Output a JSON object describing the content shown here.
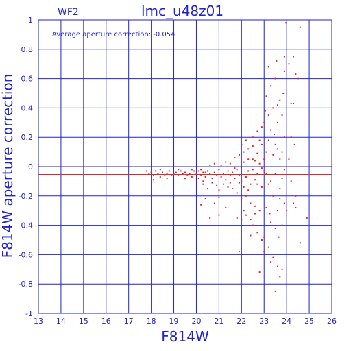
{
  "chart_data": {
    "type": "scatter",
    "title": "lmc_u48z01",
    "subtitle": "WF2",
    "xlabel": "F814W",
    "ylabel": "F814W aperture correction",
    "annotation": "Average aperture correction: -0.054",
    "xlim": [
      13,
      26
    ],
    "ylim": [
      -1,
      1
    ],
    "xticks": [
      "13",
      "14",
      "15",
      "16",
      "17",
      "18",
      "19",
      "20",
      "21",
      "22",
      "23",
      "24",
      "25",
      "26"
    ],
    "yticks": [
      "-1",
      "-0.8",
      "-0.6",
      "-0.4",
      "-0.2",
      "0",
      "0.2",
      "0.4",
      "0.6",
      "0.8",
      "1"
    ],
    "grid": true,
    "reference_line": {
      "y": -0.054,
      "color": "#ee2222"
    },
    "colors": {
      "axes": "#2222cc",
      "points": "#ee2222"
    },
    "series": [
      {
        "points": [
          [
            17.8,
            -0.03
          ],
          [
            17.9,
            -0.05
          ],
          [
            18.0,
            -0.04
          ],
          [
            18.1,
            -0.06
          ],
          [
            18.2,
            -0.03
          ],
          [
            18.3,
            -0.05
          ],
          [
            18.4,
            -0.07
          ],
          [
            18.5,
            -0.04
          ],
          [
            18.6,
            -0.06
          ],
          [
            18.7,
            -0.05
          ],
          [
            18.8,
            -0.03
          ],
          [
            18.9,
            -0.06
          ],
          [
            19.0,
            -0.05
          ],
          [
            19.1,
            -0.04
          ],
          [
            19.2,
            -0.06
          ],
          [
            19.3,
            -0.03
          ],
          [
            19.4,
            -0.05
          ],
          [
            19.5,
            -0.04
          ],
          [
            19.6,
            -0.06
          ],
          [
            19.7,
            -0.05
          ],
          [
            19.8,
            -0.07
          ],
          [
            19.9,
            -0.03
          ],
          [
            20.0,
            -0.05
          ],
          [
            18.1,
            -0.09
          ],
          [
            18.4,
            -0.02
          ],
          [
            18.7,
            -0.08
          ],
          [
            19.2,
            -0.02
          ],
          [
            19.5,
            -0.08
          ],
          [
            19.8,
            -0.02
          ],
          [
            20.1,
            -0.08
          ],
          [
            20.2,
            -0.02
          ],
          [
            20.3,
            -0.1
          ],
          [
            20.4,
            -0.04
          ],
          [
            20.1,
            -0.03
          ],
          [
            20.2,
            -0.06
          ],
          [
            20.3,
            -0.04
          ],
          [
            20.4,
            -0.07
          ],
          [
            20.5,
            -0.03
          ],
          [
            20.6,
            -0.05
          ],
          [
            20.7,
            -0.08
          ],
          [
            20.8,
            -0.04
          ],
          [
            20.9,
            -0.06
          ],
          [
            21.0,
            -0.02
          ],
          [
            21.1,
            -0.07
          ],
          [
            21.2,
            -0.05
          ],
          [
            21.3,
            -0.09
          ],
          [
            21.4,
            -0.03
          ],
          [
            21.5,
            -0.06
          ],
          [
            20.3,
            -0.12
          ],
          [
            20.5,
            -0.15
          ],
          [
            20.7,
            -0.11
          ],
          [
            20.9,
            -0.13
          ],
          [
            21.0,
            -0.16
          ],
          [
            21.2,
            -0.12
          ],
          [
            21.4,
            -0.14
          ],
          [
            21.5,
            -0.11
          ],
          [
            20.6,
            0.01
          ],
          [
            20.8,
            0.02
          ],
          [
            21.1,
            0.01
          ],
          [
            21.3,
            0.03
          ],
          [
            21.5,
            0.02
          ],
          [
            20.2,
            -0.26
          ],
          [
            20.4,
            -0.22
          ],
          [
            20.8,
            -0.25
          ],
          [
            21.0,
            -0.21
          ],
          [
            20.6,
            -0.35
          ],
          [
            21.0,
            -0.33
          ],
          [
            21.3,
            -0.28
          ],
          [
            21.6,
            -0.04
          ],
          [
            21.7,
            -0.08
          ],
          [
            21.8,
            -0.02
          ],
          [
            21.9,
            -0.06
          ],
          [
            22.0,
            -0.1
          ],
          [
            22.1,
            0.03
          ],
          [
            22.2,
            -0.07
          ],
          [
            22.3,
            -0.03
          ],
          [
            22.4,
            -0.12
          ],
          [
            22.5,
            0.05
          ],
          [
            22.6,
            -0.09
          ],
          [
            22.7,
            -0.05
          ],
          [
            22.8,
            0.02
          ],
          [
            22.9,
            -0.14
          ],
          [
            21.6,
            -0.15
          ],
          [
            21.7,
            0.06
          ],
          [
            21.8,
            -0.18
          ],
          [
            21.9,
            0.08
          ],
          [
            22.0,
            -0.22
          ],
          [
            22.1,
            0.1
          ],
          [
            22.2,
            -0.2
          ],
          [
            22.3,
            0.12
          ],
          [
            22.4,
            -0.25
          ],
          [
            22.5,
            0.14
          ],
          [
            22.6,
            -0.27
          ],
          [
            22.7,
            0.09
          ],
          [
            22.8,
            -0.3
          ],
          [
            22.9,
            0.15
          ],
          [
            21.7,
            -0.01
          ],
          [
            21.9,
            -0.11
          ],
          [
            22.1,
            -0.14
          ],
          [
            22.3,
            -0.16
          ],
          [
            22.5,
            -0.02
          ],
          [
            22.7,
            -0.12
          ],
          [
            22.9,
            -0.01
          ],
          [
            22.0,
            0.15
          ],
          [
            22.2,
            0.18
          ],
          [
            22.3,
            0.05
          ],
          [
            22.5,
            0.2
          ],
          [
            22.6,
            0.04
          ],
          [
            22.7,
            0.24
          ],
          [
            22.8,
            0.18
          ],
          [
            22.9,
            0.27
          ],
          [
            22.1,
            -0.3
          ],
          [
            22.2,
            -0.33
          ],
          [
            22.4,
            -0.36
          ],
          [
            22.5,
            -0.4
          ],
          [
            22.6,
            -0.32
          ],
          [
            22.7,
            -0.45
          ],
          [
            22.9,
            -0.5
          ],
          [
            21.8,
            -0.35
          ],
          [
            22.0,
            -0.36
          ],
          [
            21.9,
            -0.58
          ],
          [
            22.4,
            -0.47
          ],
          [
            23.0,
            -0.03
          ],
          [
            23.1,
            0.1
          ],
          [
            23.2,
            -0.12
          ],
          [
            23.3,
            0.25
          ],
          [
            23.4,
            -0.2
          ],
          [
            23.5,
            0.15
          ],
          [
            23.6,
            -0.3
          ],
          [
            23.7,
            0.05
          ],
          [
            23.8,
            -0.08
          ],
          [
            23.9,
            0.2
          ],
          [
            23.0,
            0.3
          ],
          [
            23.1,
            -0.28
          ],
          [
            23.2,
            0.35
          ],
          [
            23.3,
            -0.38
          ],
          [
            23.4,
            0.4
          ],
          [
            23.5,
            -0.42
          ],
          [
            23.6,
            0.3
          ],
          [
            23.7,
            -0.15
          ],
          [
            23.8,
            0.1
          ],
          [
            23.9,
            -0.25
          ],
          [
            23.0,
            -0.48
          ],
          [
            23.1,
            0.48
          ],
          [
            23.2,
            -0.55
          ],
          [
            23.3,
            0.55
          ],
          [
            23.4,
            -0.62
          ],
          [
            23.5,
            0.6
          ],
          [
            23.6,
            -0.68
          ],
          [
            23.7,
            0.45
          ],
          [
            23.8,
            -0.4
          ],
          [
            23.9,
            0.65
          ],
          [
            23.0,
            0.05
          ],
          [
            23.1,
            -0.05
          ],
          [
            23.2,
            0.18
          ],
          [
            23.3,
            -0.1
          ],
          [
            23.4,
            0.08
          ],
          [
            23.5,
            -0.05
          ],
          [
            23.6,
            0.12
          ],
          [
            23.7,
            -0.22
          ],
          [
            23.8,
            0.35
          ],
          [
            23.9,
            -0.02
          ],
          [
            23.05,
            0.38
          ],
          [
            23.25,
            -0.32
          ],
          [
            23.45,
            0.22
          ],
          [
            23.65,
            -0.48
          ],
          [
            23.85,
            0.5
          ],
          [
            22.8,
            -0.72
          ],
          [
            23.0,
            -0.58
          ],
          [
            23.2,
            0.68
          ],
          [
            23.5,
            -0.85
          ],
          [
            23.6,
            0.42
          ],
          [
            23.8,
            -0.7
          ],
          [
            23.9,
            0.75
          ],
          [
            23.95,
            0.98
          ],
          [
            23.3,
            -0.65
          ],
          [
            23.55,
            0.72
          ],
          [
            23.7,
            -0.75
          ],
          [
            24.1,
            0.7
          ],
          [
            24.2,
            0.43
          ],
          [
            24.3,
            0.75
          ],
          [
            24.4,
            0.63
          ],
          [
            24.3,
            -0.25
          ],
          [
            24.1,
            0.05
          ],
          [
            24.2,
            -0.1
          ],
          [
            24.4,
            -0.2
          ],
          [
            24.3,
            0.43
          ],
          [
            24.5,
            0.6
          ],
          [
            24.4,
            -0.28
          ],
          [
            24.6,
            0.95
          ],
          [
            24.6,
            -0.52
          ],
          [
            24.9,
            -0.35
          ],
          [
            24.0,
            -0.3
          ],
          [
            24.2,
            0.2
          ],
          [
            24.35,
            0.15
          ]
        ]
      }
    ]
  }
}
